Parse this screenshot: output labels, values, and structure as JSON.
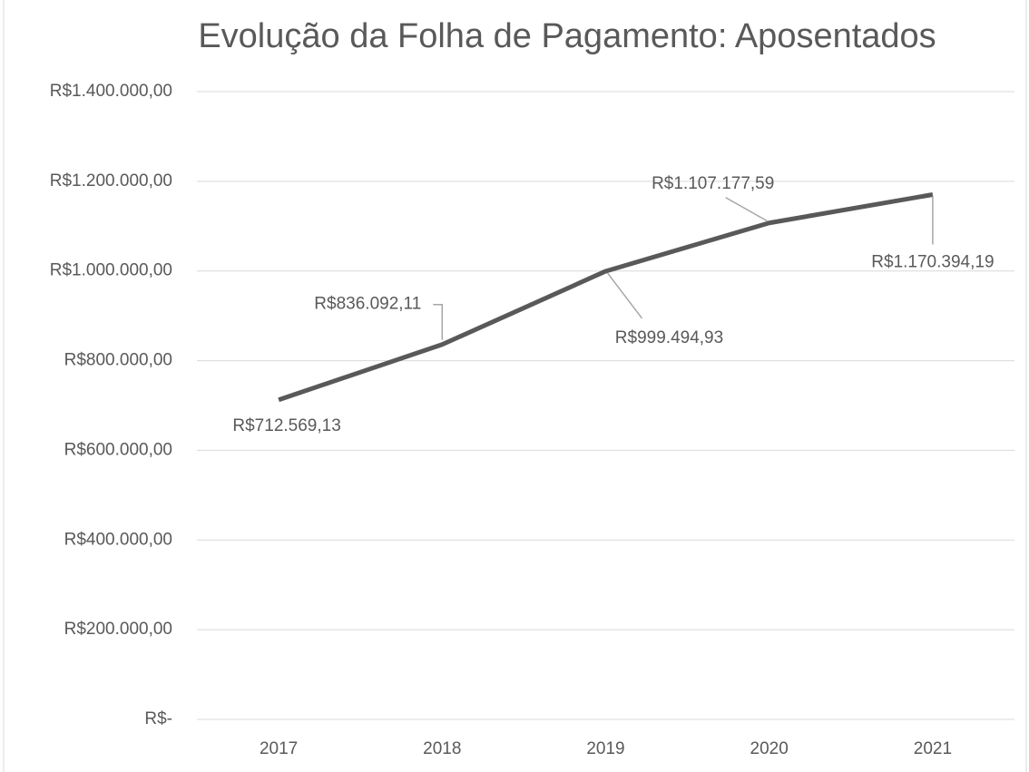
{
  "chart_data": {
    "type": "line",
    "title": "Evolução da Folha de Pagamento: Aposentados",
    "categories": [
      "2017",
      "2018",
      "2019",
      "2020",
      "2021"
    ],
    "series": [
      {
        "color": "#595959",
        "values": [
          712569.13,
          836092.11,
          999494.93,
          1107177.59,
          1170394.19
        ],
        "value_labels": [
          "R$712.569,13",
          "R$836.092,11",
          "R$999.494,93",
          "R$1.107.177,59",
          "R$1.170.394,19"
        ]
      }
    ],
    "ylim": [
      0,
      1400000
    ],
    "yticks": [
      {
        "value": 0,
        "label": "R$-"
      },
      {
        "value": 200000,
        "label": "R$200.000,00"
      },
      {
        "value": 400000,
        "label": "R$400.000,00"
      },
      {
        "value": 600000,
        "label": "R$600.000,00"
      },
      {
        "value": 800000,
        "label": "R$800.000,00"
      },
      {
        "value": 1000000,
        "label": "R$1.000.000,00"
      },
      {
        "value": 1200000,
        "label": "R$1.200.000,00"
      },
      {
        "value": 1400000,
        "label": "R$1.400.000,00"
      }
    ],
    "grid": true
  }
}
